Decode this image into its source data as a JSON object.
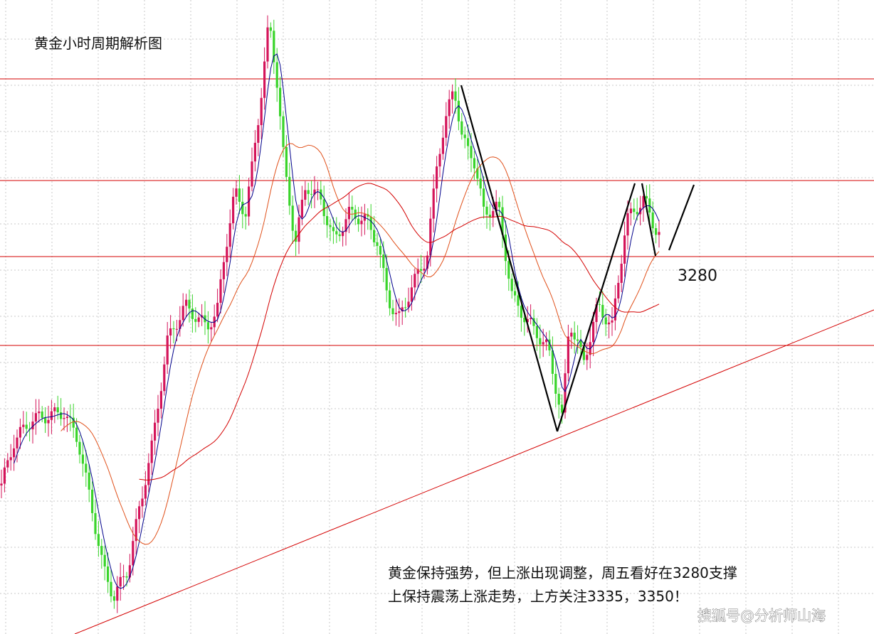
{
  "header": {
    "title": "黄金小时周期解析图"
  },
  "level_label": "3280",
  "annotation": {
    "lines": [
      "黄金保持强势，但上涨出现调整，周五看好在3280支撑",
      "上保持震荡上涨走势，上方关注3335，3350！"
    ]
  },
  "watermark": "搜狐号@分析师山海"
}
